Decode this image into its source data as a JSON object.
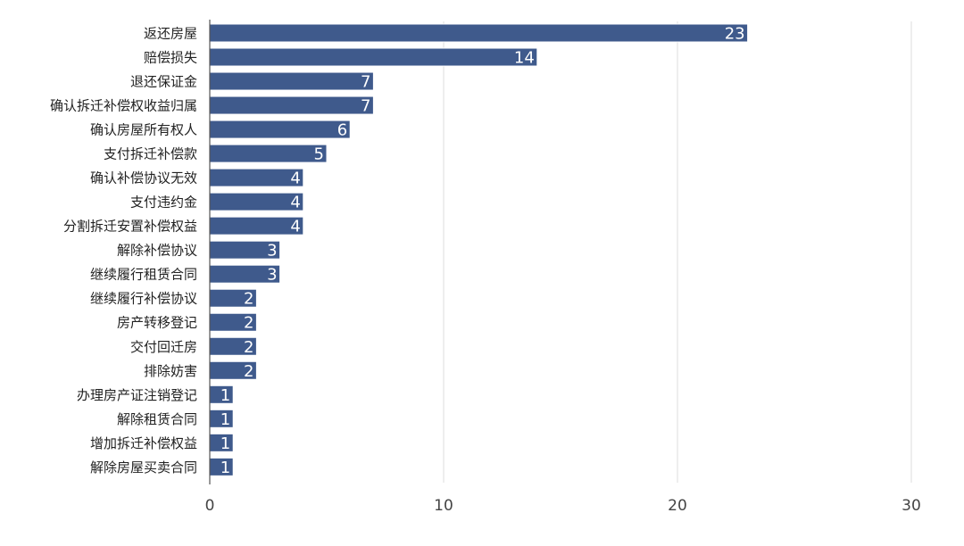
{
  "chart_data": {
    "type": "bar",
    "orientation": "horizontal",
    "title": "",
    "xlabel": "",
    "ylabel": "",
    "categories": [
      "返还房屋",
      "赔偿损失",
      "退还保证金",
      "确认拆迁补偿权收益归属",
      "确认房屋所有权人",
      "支付拆迁补偿款",
      "确认补偿协议无效",
      "支付违约金",
      "分割拆迁安置补偿权益",
      "解除补偿协议",
      "继续履行租赁合同",
      "继续履行补偿协议",
      "房产转移登记",
      "交付回迁房",
      "排除妨害",
      "办理房产证注销登记",
      "解除租赁合同",
      "增加拆迁补偿权益",
      "解除房屋买卖合同"
    ],
    "values": [
      23,
      14,
      7,
      7,
      6,
      5,
      4,
      4,
      4,
      3,
      3,
      2,
      2,
      2,
      2,
      1,
      1,
      1,
      1
    ],
    "xlim": [
      0,
      30
    ],
    "xticks": [
      "0",
      "10",
      "20",
      "30"
    ],
    "grid": "vertical",
    "legend": "none",
    "data_labels": "inside-end",
    "colors": {
      "bar": "#3f5a8c",
      "bar_label": "#ffffff",
      "grid": "#dddddd",
      "axis": "#555555",
      "text": "#222222"
    }
  }
}
